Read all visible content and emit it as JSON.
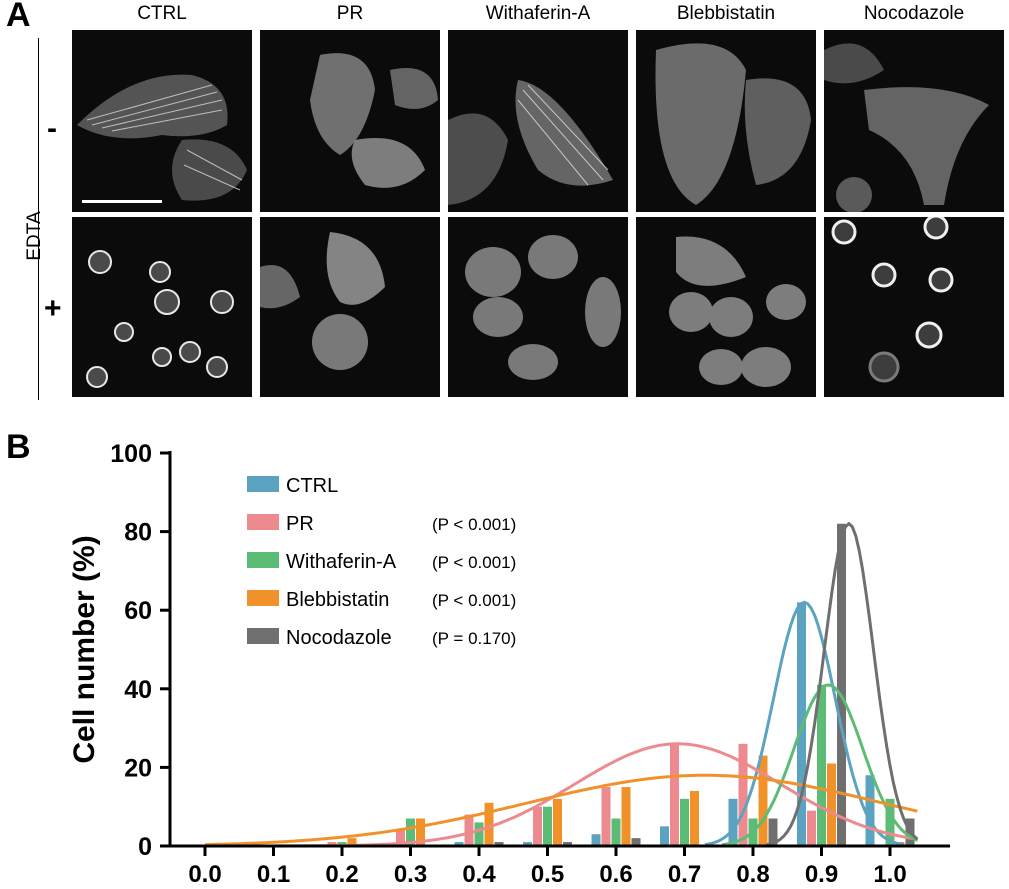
{
  "panel_a": {
    "letter": "A",
    "columns": [
      "CTRL",
      "PR",
      "Withaferin-A",
      "Blebbistatin",
      "Nocodazole"
    ],
    "row_axis_label": "EDTA",
    "rows": [
      "-",
      "+"
    ]
  },
  "panel_b": {
    "letter": "B",
    "legend": [
      {
        "name": "CTRL",
        "p": ""
      },
      {
        "name": "PR",
        "p": "(P < 0.001)"
      },
      {
        "name": "Withaferin-A",
        "p": "(P < 0.001)"
      },
      {
        "name": "Blebbistatin",
        "p": "(P < 0.001)"
      },
      {
        "name": "Nocodazole",
        "p": "(P = 0.170)"
      }
    ]
  },
  "chart_data": {
    "type": "bar",
    "ylabel": "Cell number (%)",
    "xlabel": "",
    "ylim": [
      0,
      100
    ],
    "yticks": [
      0,
      20,
      40,
      60,
      80,
      100
    ],
    "xticks": [
      "0.0",
      "0.1",
      "0.2",
      "0.3",
      "0.4",
      "0.5",
      "0.6",
      "0.7",
      "0.8",
      "0.9",
      "1.0"
    ],
    "x": [
      0.0,
      0.1,
      0.2,
      0.3,
      0.4,
      0.5,
      0.6,
      0.7,
      0.8,
      0.9,
      1.0
    ],
    "colors": {
      "CTRL": "#5ba3c0",
      "PR": "#ec8a8f",
      "Withaferin-A": "#5cbc75",
      "Blebbistatin": "#f0912a",
      "Nocodazole": "#6f6f6f"
    },
    "series": [
      {
        "name": "CTRL",
        "values": [
          0,
          0,
          0,
          0,
          1,
          1,
          3,
          5,
          12,
          62,
          18
        ]
      },
      {
        "name": "PR",
        "values": [
          0,
          0,
          1,
          4,
          8,
          10,
          15,
          26,
          26,
          9,
          0
        ]
      },
      {
        "name": "Withaferin-A",
        "values": [
          0,
          0,
          1,
          7,
          6,
          10,
          7,
          12,
          7,
          41,
          12
        ]
      },
      {
        "name": "Blebbistatin",
        "values": [
          0,
          0,
          2,
          7,
          11,
          12,
          15,
          14,
          23,
          21,
          1
        ]
      },
      {
        "name": "Nocodazole",
        "values": [
          0,
          0,
          0,
          0,
          1,
          1,
          2,
          0,
          7,
          82,
          7
        ]
      }
    ],
    "fits": [
      {
        "name": "CTRL",
        "type": "gaussian",
        "amplitude": 62,
        "mean": 0.875,
        "sd": 0.045
      },
      {
        "name": "PR",
        "type": "gaussian",
        "amplitude": 26,
        "mean": 0.69,
        "sd": 0.15
      },
      {
        "name": "Withaferin-A",
        "type": "gaussian",
        "amplitude": 41,
        "mean": 0.91,
        "sd": 0.05
      },
      {
        "name": "Blebbistatin",
        "type": "gaussian",
        "amplitude": 18,
        "mean": 0.73,
        "sd": 0.26
      },
      {
        "name": "Nocodazole",
        "type": "gaussian",
        "amplitude": 82,
        "mean": 0.94,
        "sd": 0.036
      }
    ]
  }
}
